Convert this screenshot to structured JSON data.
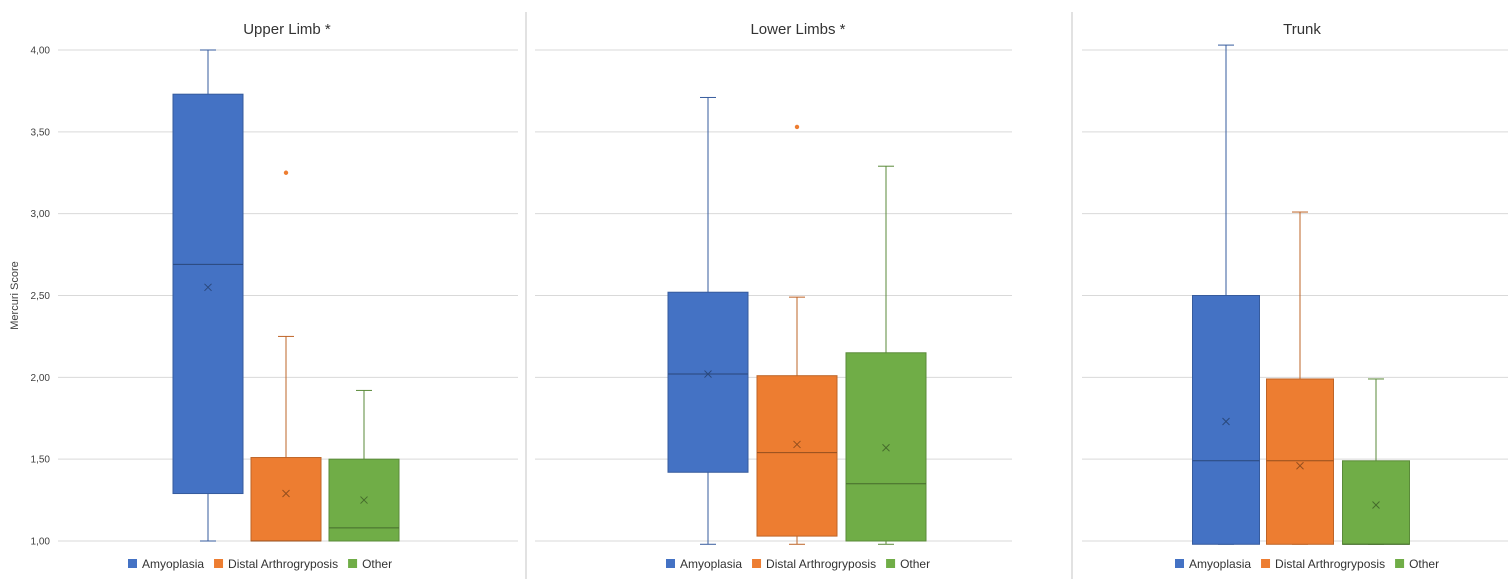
{
  "chart_data": [
    {
      "type": "box",
      "title": "Upper Limb *",
      "ylabel": "Mercuri Score",
      "ylim": [
        1.0,
        4.0
      ],
      "yticks": [
        "1,00",
        "1,50",
        "2,00",
        "2,50",
        "3,00",
        "3,50",
        "4,00"
      ],
      "grid": true,
      "legend_position": "bottom",
      "series": [
        {
          "name": "Amyoplasia",
          "color": "#4472C4",
          "min": 1.0,
          "q1": 1.29,
          "median": 2.69,
          "q3": 3.73,
          "max": 4.0,
          "mean": 2.55,
          "outliers": []
        },
        {
          "name": "Distal Arthrogryposis",
          "color": "#ED7D31",
          "min": 1.0,
          "q1": 1.0,
          "median": 1.0,
          "q3": 1.51,
          "max": 2.25,
          "mean": 1.29,
          "outliers": [
            3.25
          ]
        },
        {
          "name": "Other",
          "color": "#70AD47",
          "min": 1.0,
          "q1": 1.0,
          "median": 1.08,
          "q3": 1.5,
          "max": 1.92,
          "mean": 1.25,
          "outliers": []
        }
      ]
    },
    {
      "type": "box",
      "title": "Lower Limbs *",
      "ylabel": "",
      "ylim": [
        1.0,
        4.0
      ],
      "yticks": [],
      "grid": true,
      "legend_position": "bottom",
      "series": [
        {
          "name": "Amyoplasia",
          "color": "#4472C4",
          "min": 0.98,
          "q1": 1.42,
          "median": 2.02,
          "q3": 2.52,
          "max": 3.71,
          "mean": 2.02,
          "outliers": []
        },
        {
          "name": "Distal Arthrogryposis",
          "color": "#ED7D31",
          "min": 0.98,
          "q1": 1.03,
          "median": 1.54,
          "q3": 2.01,
          "max": 2.49,
          "mean": 1.59,
          "outliers": [
            3.53
          ]
        },
        {
          "name": "Other",
          "color": "#70AD47",
          "min": 0.98,
          "q1": 1.0,
          "median": 1.35,
          "q3": 2.15,
          "max": 3.29,
          "mean": 1.57,
          "outliers": []
        }
      ]
    },
    {
      "type": "box",
      "title": "Trunk",
      "ylabel": "",
      "ylim": [
        1.0,
        4.0
      ],
      "yticks": [],
      "grid": true,
      "legend_position": "bottom",
      "series": [
        {
          "name": "Amyoplasia",
          "color": "#4472C4",
          "min": 0.98,
          "q1": 0.98,
          "median": 1.49,
          "q3": 2.5,
          "max": 4.03,
          "mean": 1.73,
          "outliers": []
        },
        {
          "name": "Distal Arthrogryposis",
          "color": "#ED7D31",
          "min": 0.98,
          "q1": 0.98,
          "median": 1.49,
          "q3": 1.99,
          "max": 3.01,
          "mean": 1.46,
          "outliers": []
        },
        {
          "name": "Other",
          "color": "#70AD47",
          "min": 0.98,
          "q1": 0.98,
          "median": 0.98,
          "q3": 1.49,
          "max": 1.99,
          "mean": 1.22,
          "outliers": []
        }
      ]
    }
  ]
}
